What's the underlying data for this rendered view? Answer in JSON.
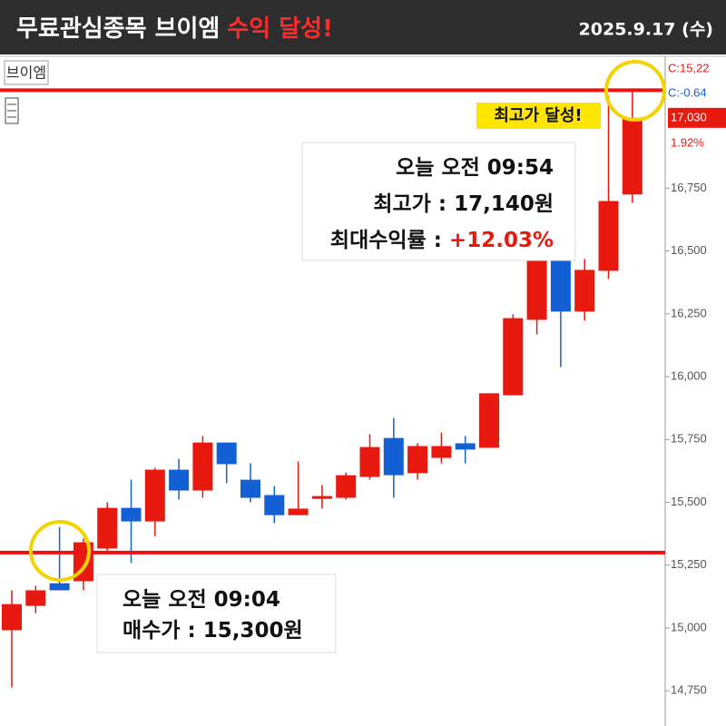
{
  "chart_data": {
    "type": "candlestick",
    "title": "무료관심종목 브이엠",
    "title_highlight": "수익 달성!",
    "date": "2025.9.17 (수)",
    "symbol_label": "브이엠",
    "up_color": "#e8190e",
    "down_color": "#1360d4",
    "categories": [
      null,
      null,
      null,
      null,
      null,
      null,
      null,
      null,
      null,
      null,
      null,
      null,
      null,
      null,
      null,
      null,
      null,
      null,
      null,
      null,
      null,
      null,
      null,
      null,
      null,
      null,
      null
    ],
    "open": [
      14991,
      15088,
      15178,
      15186,
      15316,
      15478,
      15424,
      15630,
      15547,
      15738,
      15590,
      15529,
      15449,
      15514,
      15518,
      15601,
      15756,
      15616,
      15677,
      15735,
      15717,
      15926,
      16226,
      16475,
      16259,
      16421,
      16725
    ],
    "high": [
      15150,
      15168,
      15402,
      15356,
      15500,
      15590,
      15637,
      15673,
      15764,
      15738,
      15655,
      15565,
      15663,
      15569,
      15619,
      15771,
      15836,
      15735,
      15778,
      15764,
      15934,
      16248,
      16493,
      16522,
      16468,
      17118,
      17140
    ],
    "low": [
      14763,
      15059,
      15150,
      15150,
      15294,
      15258,
      15366,
      15511,
      15518,
      15576,
      15500,
      15417,
      15449,
      15475,
      15511,
      15590,
      15518,
      15590,
      15655,
      15655,
      15717,
      15926,
      16168,
      16038,
      16223,
      16389,
      16692
    ],
    "close": [
      15095,
      15150,
      15150,
      15341,
      15478,
      15424,
      15630,
      15547,
      15738,
      15652,
      15518,
      15449,
      15475,
      15525,
      15608,
      15720,
      15608,
      15724,
      15724,
      15710,
      15934,
      16233,
      16475,
      16259,
      16425,
      16699,
      17030
    ],
    "ylim": [
      14610,
      17275
    ],
    "yticks": [
      {
        "value": 14750,
        "label": "14,750"
      },
      {
        "value": 15000,
        "label": "15,000"
      },
      {
        "value": 15250,
        "label": "15,250"
      },
      {
        "value": 15500,
        "label": "15,500"
      },
      {
        "value": 15750,
        "label": "15,750"
      },
      {
        "value": 16000,
        "label": "16,000"
      },
      {
        "value": 16250,
        "label": "16,250"
      },
      {
        "value": 16500,
        "label": "16,500"
      },
      {
        "value": 16750,
        "label": "16,750"
      }
    ],
    "hlines": [
      {
        "value": 17140,
        "color": "#ee1111"
      },
      {
        "value": 15300,
        "color": "#ee1111"
      }
    ],
    "price_tag": {
      "value": 17030,
      "label": "17,030"
    },
    "change_label": "1.92%",
    "axis_notes": [
      "C:15,22",
      "C:-0.64"
    ],
    "badge": "최고가 달성!",
    "annotations": [
      {
        "lines": [
          {
            "text": "오늘 오전 09:54"
          },
          {
            "text": "최고가 : 17,140원"
          },
          {
            "text": "최대수익률 :",
            "highlight": "+12.03%"
          }
        ]
      },
      {
        "lines": [
          {
            "text": "오늘 오전 09:04"
          },
          {
            "text": "매수가 : 15,300원"
          }
        ]
      }
    ]
  }
}
